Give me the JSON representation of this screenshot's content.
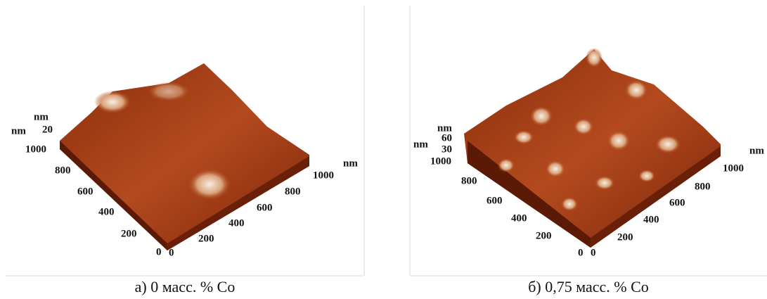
{
  "panels": [
    {
      "z_unit": "nm",
      "left_unit": "nm",
      "z_ticks": [
        "20"
      ],
      "left_ticks": [
        "1000",
        "800",
        "600",
        "400",
        "200",
        "0"
      ],
      "right_ticks": [
        "0",
        "200",
        "400",
        "600",
        "800",
        "1000"
      ],
      "right_unit": "nm",
      "caption": "а) 0 масс. % Co"
    },
    {
      "z_unit": "nm",
      "left_unit": "nm",
      "z_ticks": [
        "60",
        "30"
      ],
      "left_ticks": [
        "1000",
        "800",
        "600",
        "400",
        "200",
        "0"
      ],
      "right_ticks": [
        "0",
        "200",
        "400",
        "600",
        "800",
        "1000"
      ],
      "right_unit": "nm",
      "caption": "б) 0,75 масс. % Co"
    }
  ]
}
